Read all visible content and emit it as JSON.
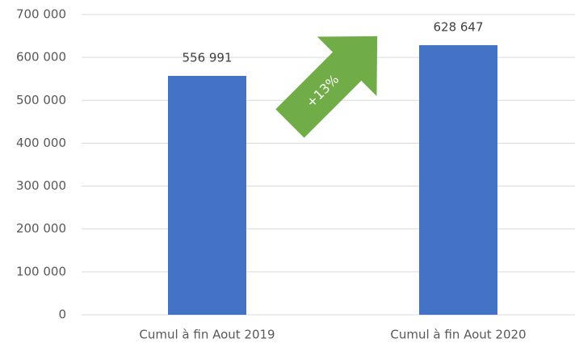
{
  "chart_data": {
    "type": "bar",
    "categories": [
      "Cumul à fin Aout 2019",
      "Cumul à fin Aout 2020"
    ],
    "values": [
      556991,
      628647
    ],
    "value_labels": [
      "556 991",
      "628 647"
    ],
    "color": "#4472c4",
    "ylim": [
      0,
      700000
    ],
    "yticks": [
      {
        "value": 0,
        "label": "0"
      },
      {
        "value": 100000,
        "label": "100 000"
      },
      {
        "value": 200000,
        "label": "200 000"
      },
      {
        "value": 300000,
        "label": "300 000"
      },
      {
        "value": 400000,
        "label": "400 000"
      },
      {
        "value": 500000,
        "label": "500 000"
      },
      {
        "value": 600000,
        "label": "600 000"
      },
      {
        "value": 700000,
        "label": "700 000"
      }
    ],
    "grid": true,
    "annotation": "+13%"
  }
}
